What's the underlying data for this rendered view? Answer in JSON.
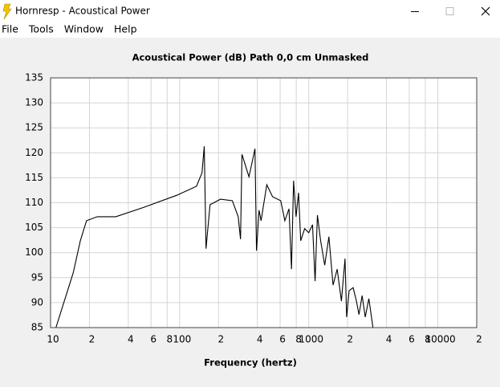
{
  "window": {
    "title": "Hornresp - Acoustical Power",
    "menu": [
      "File",
      "Tools",
      "Window",
      "Help"
    ]
  },
  "chart_data": {
    "type": "line",
    "title": "Acoustical Power (dB)   Path 0,0 cm   Unmasked",
    "xlabel": "Frequency (hertz)",
    "xscale": "log",
    "color": "#000000",
    "grid": true,
    "x": [
      11,
      15,
      17,
      19,
      23,
      32,
      53,
      95,
      135,
      149,
      155,
      160,
      172,
      207,
      256,
      284,
      296,
      304,
      344,
      372,
      383,
      394,
      412,
      427,
      473,
      524,
      607,
      653,
      703,
      735,
      763,
      797,
      833,
      867,
      929,
      1000,
      1070,
      1119,
      1167,
      1235,
      1330,
      1432,
      1543,
      1659,
      1790,
      1908,
      1965,
      2055,
      2205,
      2340,
      2450,
      2590,
      2740,
      2920,
      3142
    ],
    "values": [
      85,
      96,
      102.4,
      106.4,
      107.2,
      107.2,
      109.1,
      111.5,
      113.3,
      116,
      121.3,
      100.8,
      109.6,
      110.7,
      110.4,
      107.2,
      102.7,
      119.7,
      115.2,
      119.2,
      120.8,
      100.4,
      108.5,
      106.4,
      113.6,
      111.2,
      110.4,
      106.4,
      108.8,
      96.7,
      114.4,
      107.2,
      112,
      102.4,
      104.8,
      104,
      105.6,
      94.3,
      107.5,
      102.4,
      97.5,
      103.2,
      93.5,
      96.7,
      90.3,
      98.8,
      87.1,
      92.4,
      93,
      90.3,
      87.6,
      91.4,
      87.1,
      90.8,
      85
    ],
    "xlim": [
      10,
      20000
    ],
    "xticks": [
      10,
      {
        "value": 20,
        "label": "2"
      },
      {
        "value": 40,
        "label": "4"
      },
      {
        "value": 60,
        "label": "6"
      },
      {
        "value": 80,
        "label": "8"
      },
      100,
      {
        "value": 200,
        "label": "2"
      },
      {
        "value": 400,
        "label": "4"
      },
      {
        "value": 600,
        "label": "6"
      },
      {
        "value": 800,
        "label": "8"
      },
      1000,
      {
        "value": 2000,
        "label": "2"
      },
      {
        "value": 4000,
        "label": "4"
      },
      {
        "value": 6000,
        "label": "6"
      },
      {
        "value": 8000,
        "label": "8"
      },
      10000,
      {
        "value": 20000,
        "label": "2"
      }
    ],
    "ylim": [
      85,
      135
    ],
    "yticks": [
      85,
      90,
      95,
      100,
      105,
      110,
      115,
      120,
      125,
      130,
      135
    ]
  }
}
